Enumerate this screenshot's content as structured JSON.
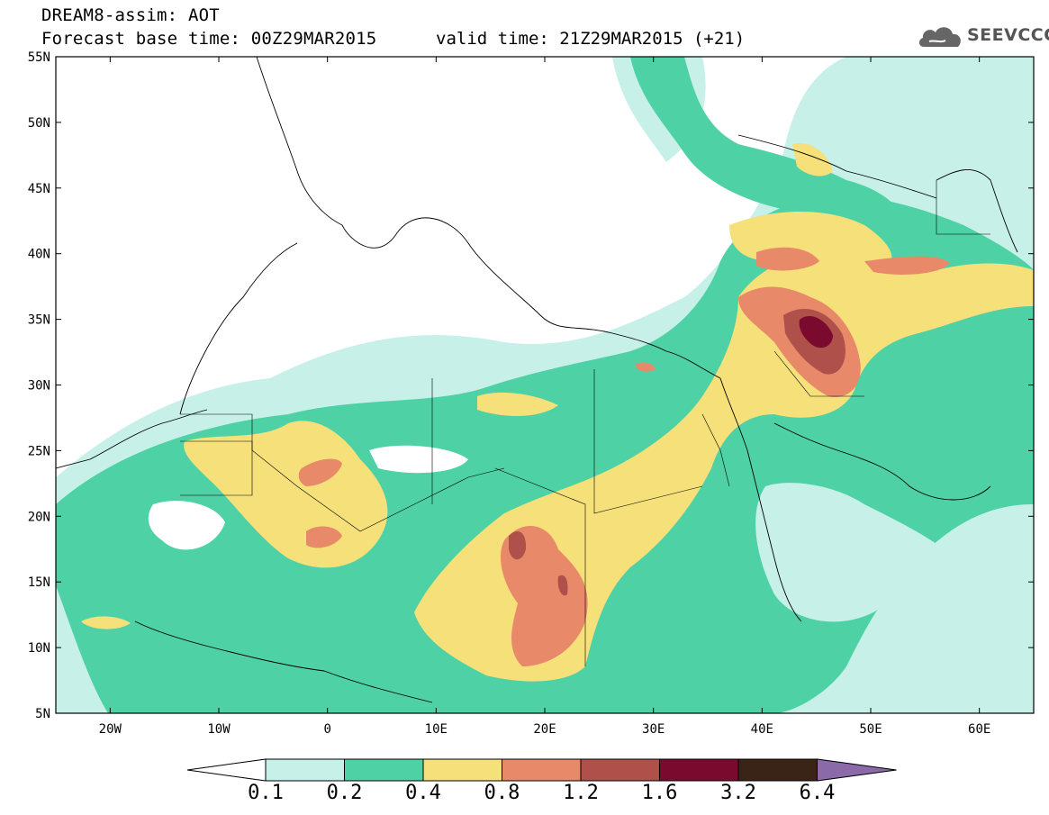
{
  "header": {
    "title_line1": "DREAM8-assim: AOT",
    "title_line2": "Forecast base time: 00Z29MAR2015",
    "valid_time": "valid time: 21Z29MAR2015 (+21)",
    "logo_text": "SEEVCCC",
    "logo_icon": "cloud-icon"
  },
  "map": {
    "extent": {
      "lon": [
        -25,
        65
      ],
      "lat": [
        5,
        55
      ]
    },
    "lat_labels": [
      "55N",
      "50N",
      "45N",
      "40N",
      "35N",
      "30N",
      "25N",
      "20N",
      "15N",
      "10N",
      "5N"
    ],
    "lon_labels": [
      "20W",
      "10W",
      "0",
      "10E",
      "20E",
      "30E",
      "40E",
      "50E",
      "60E"
    ]
  },
  "colorbar": {
    "levels": [
      "0.1",
      "0.2",
      "0.4",
      "0.8",
      "1.2",
      "1.6",
      "3.2",
      "6.4"
    ],
    "colors": [
      "#c6f0e8",
      "#4fd1a6",
      "#f5e07a",
      "#e8896a",
      "#b0504a",
      "#7a0a2e",
      "#3a2418",
      "#8a6aa8"
    ],
    "under_color": "#ffffff",
    "over_color": "#8a6aa8"
  }
}
